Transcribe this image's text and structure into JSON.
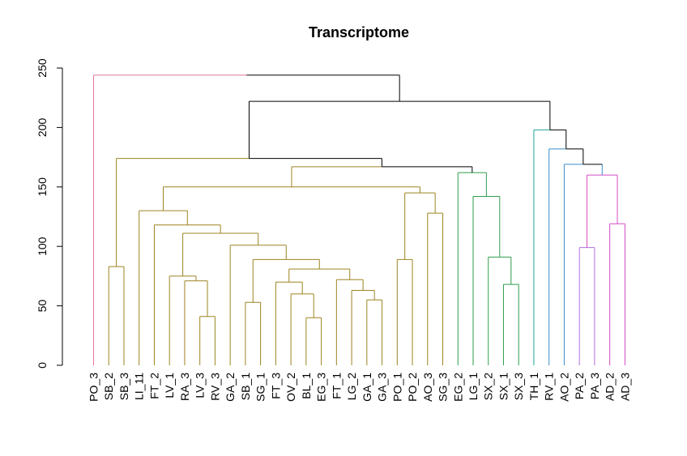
{
  "chart_data": {
    "type": "dendrogram",
    "title": "Transcriptome",
    "xlabel": "",
    "ylabel": "",
    "ylim": [
      0,
      250
    ],
    "yticks": [
      0,
      50,
      100,
      150,
      200,
      250
    ],
    "grid": false,
    "legend": "none",
    "leaves": [
      "PO_3",
      "SB_2",
      "SB_3",
      "LI_11",
      "FT_2",
      "LV_1",
      "RA_3",
      "LV_3",
      "RV_3",
      "GA_2",
      "SB_1",
      "SG_1",
      "FT_3",
      "OV_2",
      "BL_1",
      "EG_3",
      "FT_1",
      "LG_2",
      "GA_1",
      "GA_3",
      "PO_1",
      "PO_2",
      "AO_3",
      "SG_3",
      "EG_2",
      "LG_1",
      "SX_2",
      "SX_1",
      "SX_3",
      "TH_1",
      "RV_1",
      "AO_2",
      "PA_2",
      "PA_3",
      "AD_2",
      "AD_3"
    ],
    "colors": {
      "pink": "#E377A0",
      "olive": "#9C8420",
      "green": "#2E9E4E",
      "teal": "#21A39A",
      "blue": "#3A8CC9",
      "purple": "#B070E0",
      "magenta": "#D54BC4",
      "black": "#000000"
    },
    "merges": [
      {
        "id": "n1",
        "left": "BL_1",
        "right": "EG_3",
        "height": 40,
        "color": "olive"
      },
      {
        "id": "n2",
        "left": "LV_3",
        "right": "RV_3",
        "height": 41,
        "color": "olive"
      },
      {
        "id": "n3",
        "left": "SB_1",
        "right": "SG_1",
        "height": 53,
        "color": "olive"
      },
      {
        "id": "n4",
        "left": "GA_1",
        "right": "GA_3",
        "height": 55,
        "color": "olive"
      },
      {
        "id": "n5",
        "left": "OV_2",
        "right": "n1",
        "height": 60,
        "color": "olive"
      },
      {
        "id": "n6",
        "left": "LG_2",
        "right": "n4",
        "height": 63,
        "color": "olive"
      },
      {
        "id": "n7",
        "left": "SX_1",
        "right": "SX_3",
        "height": 68,
        "color": "green"
      },
      {
        "id": "n8",
        "left": "FT_3",
        "right": "n5",
        "height": 70,
        "color": "olive"
      },
      {
        "id": "n9",
        "left": "RA_3",
        "right": "n2",
        "height": 71,
        "color": "olive"
      },
      {
        "id": "n10",
        "left": "FT_1",
        "right": "n6",
        "height": 72,
        "color": "olive"
      },
      {
        "id": "n11",
        "left": "LV_1",
        "right": "n9",
        "height": 75,
        "color": "olive"
      },
      {
        "id": "n12",
        "left": "n8",
        "right": "n10",
        "height": 81,
        "color": "olive"
      },
      {
        "id": "n13",
        "left": "SB_2",
        "right": "SB_3",
        "height": 83,
        "color": "olive"
      },
      {
        "id": "n14",
        "left": "n3",
        "right": "n12",
        "height": 89,
        "color": "olive"
      },
      {
        "id": "n15",
        "left": "PO_1",
        "right": "PO_2",
        "height": 89,
        "color": "olive"
      },
      {
        "id": "n16",
        "left": "SX_2",
        "right": "n7",
        "height": 91,
        "color": "green"
      },
      {
        "id": "n17",
        "left": "PA_2",
        "right": "PA_3",
        "height": 99,
        "color": "purple"
      },
      {
        "id": "n18",
        "left": "GA_2",
        "right": "n14",
        "height": 101,
        "color": "olive"
      },
      {
        "id": "n19",
        "left": "n11",
        "right": "n18",
        "height": 111,
        "color": "olive"
      },
      {
        "id": "n20",
        "left": "FT_2",
        "right": "n19",
        "height": 118,
        "color": "olive"
      },
      {
        "id": "n21",
        "left": "AD_2",
        "right": "AD_3",
        "height": 119,
        "color": "magenta"
      },
      {
        "id": "n22",
        "left": "AO_3",
        "right": "SG_3",
        "height": 128,
        "color": "olive"
      },
      {
        "id": "n23",
        "left": "LI_11",
        "right": "n20",
        "height": 130,
        "color": "olive"
      },
      {
        "id": "n24",
        "left": "LG_1",
        "right": "n16",
        "height": 142,
        "color": "green"
      },
      {
        "id": "n25",
        "left": "n15",
        "right": "n22",
        "height": 145,
        "color": "olive"
      },
      {
        "id": "n26",
        "left": "n23",
        "right": "n25",
        "height": 150,
        "color": "olive"
      },
      {
        "id": "n27",
        "left": "n17",
        "right": "n21",
        "height": 160,
        "color": "magenta"
      },
      {
        "id": "n28",
        "left": "EG_2",
        "right": "n24",
        "height": 162,
        "color": "green"
      },
      {
        "id": "n29",
        "left": "n26",
        "right": "n28",
        "height": 167,
        "color": "black",
        "left_color": "olive"
      },
      {
        "id": "n30",
        "left": "AO_2",
        "right": "n27",
        "height": 169,
        "color": "black",
        "left_color": "blue",
        "right_color": "blue"
      },
      {
        "id": "n31",
        "left": "n13",
        "right": "n29",
        "height": 174,
        "color": "black",
        "left_color": "olive"
      },
      {
        "id": "n32",
        "left": "RV_1",
        "right": "n30",
        "height": 182,
        "color": "black",
        "left_color": "blue"
      },
      {
        "id": "n33",
        "left": "TH_1",
        "right": "n32",
        "height": 198,
        "color": "black",
        "left_color": "teal"
      },
      {
        "id": "n34",
        "left": "n31",
        "right": "n33",
        "height": 222,
        "color": "black"
      },
      {
        "id": "n35",
        "left": "PO_3",
        "right": "n34",
        "height": 244,
        "color": "black",
        "left_color": "pink"
      }
    ]
  }
}
